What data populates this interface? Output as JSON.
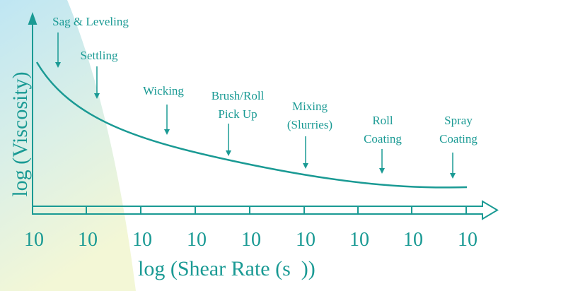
{
  "axes": {
    "y_label": "log (Viscosity)",
    "x_label": "log (Shear Rate (s  ))",
    "x_tick_labels": [
      "10",
      "10",
      "10",
      "10",
      "10",
      "10",
      "10",
      "10",
      "10"
    ]
  },
  "annotations": [
    {
      "lines": [
        "Sag & Leveling"
      ]
    },
    {
      "lines": [
        "Settling"
      ]
    },
    {
      "lines": [
        "Wicking"
      ]
    },
    {
      "lines": [
        "Brush/Roll",
        "Pick Up"
      ]
    },
    {
      "lines": [
        "Mixing",
        "(Slurries)"
      ]
    },
    {
      "lines": [
        "Roll",
        "Coating"
      ]
    },
    {
      "lines": [
        "Spray",
        "Coating"
      ]
    }
  ]
}
